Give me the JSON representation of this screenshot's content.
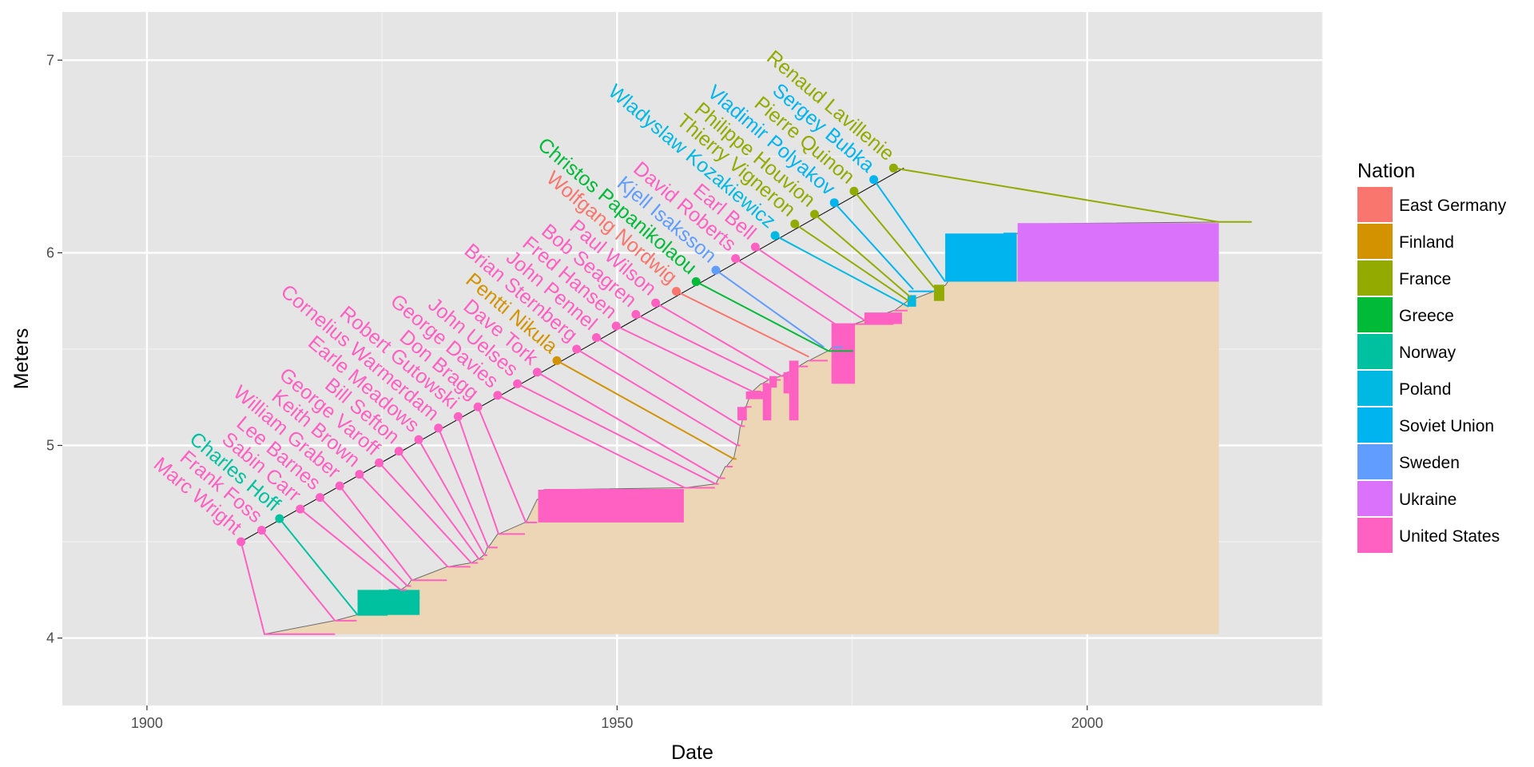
{
  "chart_data": {
    "type": "line",
    "xlabel": "Date",
    "ylabel": "Meters",
    "xlim": [
      1891,
      2025
    ],
    "ylim": [
      3.65,
      7.25
    ],
    "x_ticks": [
      1900,
      1950,
      2000
    ],
    "y_ticks": [
      4,
      5,
      6,
      7
    ],
    "grid": true,
    "legend": {
      "title": "Nation",
      "position": "right",
      "entries": [
        {
          "name": "East Germany",
          "color": "#F8766D"
        },
        {
          "name": "Finland",
          "color": "#D39200"
        },
        {
          "name": "France",
          "color": "#93AA00"
        },
        {
          "name": "Greece",
          "color": "#00BA38"
        },
        {
          "name": "Norway",
          "color": "#00C19F"
        },
        {
          "name": "Poland",
          "color": "#00B9E3"
        },
        {
          "name": "Soviet Union",
          "color": "#00B4F0"
        },
        {
          "name": "Sweden",
          "color": "#619CFF"
        },
        {
          "name": "Ukraine",
          "color": "#DB72FB"
        },
        {
          "name": "United States",
          "color": "#FF61C3"
        }
      ]
    },
    "record_progression": {
      "band_color": "#EDD6B5",
      "dates": [
        1912.4,
        1912.5,
        1919.9,
        1920.0,
        1922.3,
        1922.4,
        1925.6,
        1925.7,
        1926.9,
        1927.0,
        1927.6,
        1927.7,
        1928.1,
        1928.2,
        1931.9,
        1932.0,
        1934.4,
        1934.5,
        1935.2,
        1935.3,
        1935.8,
        1935.9,
        1936.2,
        1936.3,
        1937.3,
        1937.4,
        1940.2,
        1940.3,
        1941.5,
        1941.6,
        1942.2,
        1942.3,
        1957.1,
        1957.2,
        1960.4,
        1960.5,
        1960.8,
        1960.9,
        1961.5,
        1961.6,
        1962.3,
        1962.4,
        1962.7,
        1962.8,
        1963.1,
        1963.2,
        1963.6,
        1963.7,
        1964.3,
        1964.4,
        1965.3,
        1965.4,
        1966.1,
        1966.2,
        1967.4,
        1967.5,
        1968.1,
        1968.2,
        1969.2,
        1969.3,
        1970.3,
        1970.4,
        1972.4,
        1972.5,
        1975.1,
        1975.2,
        1979.4,
        1979.5,
        1980.9,
        1981.0,
        1983.7,
        1983.8,
        1984.8,
        1984.9,
        1985.6,
        1985.7,
        1987.0,
        1987.1,
        1988.2,
        1988.3,
        1991.0,
        1991.1,
        1992.5,
        1992.6,
        1993.2,
        1993.3,
        2014.0
      ],
      "heights": [
        4.02,
        4.02,
        4.09,
        4.09,
        4.12,
        4.12,
        4.21,
        4.21,
        4.25,
        4.25,
        4.27,
        4.27,
        4.3,
        4.3,
        4.37,
        4.37,
        4.39,
        4.39,
        4.41,
        4.41,
        4.43,
        4.43,
        4.47,
        4.47,
        4.54,
        4.54,
        4.6,
        4.6,
        4.72,
        4.72,
        4.77,
        4.77,
        4.78,
        4.78,
        4.8,
        4.8,
        4.83,
        4.83,
        4.89,
        4.89,
        4.93,
        4.93,
        5.0,
        5.0,
        5.1,
        5.1,
        5.2,
        5.2,
        5.28,
        5.28,
        5.32,
        5.32,
        5.34,
        5.34,
        5.36,
        5.36,
        5.38,
        5.38,
        5.41,
        5.41,
        5.44,
        5.44,
        5.49,
        5.49,
        5.63,
        5.63,
        5.7,
        5.7,
        5.75,
        5.75,
        5.8,
        5.8,
        5.83,
        5.83,
        5.88,
        5.88,
        5.94,
        5.94,
        6.0,
        6.0,
        6.05,
        6.05,
        6.1,
        6.1,
        6.15,
        6.15,
        6.16
      ]
    },
    "record_segments": [
      {
        "start": 1912.5,
        "end": 1920.0,
        "height": 4.02,
        "nation": "United States"
      },
      {
        "start": 1920.0,
        "end": 1922.3,
        "height": 4.09,
        "nation": "United States"
      },
      {
        "start": 1922.4,
        "end": 1925.6,
        "height": 4.12,
        "nation": "Norway"
      },
      {
        "start": 1924.5,
        "end": 1929.0,
        "height": 4.21,
        "nation": "Norway"
      },
      {
        "start": 1925.7,
        "end": 1926.9,
        "height": 4.25,
        "nation": "Norway"
      },
      {
        "start": 1927.0,
        "end": 1927.6,
        "height": 4.25,
        "nation": "United States"
      },
      {
        "start": 1927.7,
        "end": 1928.1,
        "height": 4.27,
        "nation": "United States"
      },
      {
        "start": 1928.2,
        "end": 1931.9,
        "height": 4.3,
        "nation": "United States"
      },
      {
        "start": 1932.0,
        "end": 1934.4,
        "height": 4.37,
        "nation": "United States"
      },
      {
        "start": 1934.5,
        "end": 1935.2,
        "height": 4.39,
        "nation": "United States"
      },
      {
        "start": 1935.3,
        "end": 1935.8,
        "height": 4.41,
        "nation": "United States"
      },
      {
        "start": 1935.9,
        "end": 1936.2,
        "height": 4.43,
        "nation": "United States"
      },
      {
        "start": 1936.3,
        "end": 1937.3,
        "height": 4.47,
        "nation": "United States"
      },
      {
        "start": 1937.4,
        "end": 1940.2,
        "height": 4.54,
        "nation": "United States"
      },
      {
        "start": 1940.3,
        "end": 1941.5,
        "height": 4.6,
        "nation": "United States"
      },
      {
        "start": 1941.6,
        "end": 1942.2,
        "height": 4.72,
        "nation": "United States"
      },
      {
        "start": 1942.3,
        "end": 1957.1,
        "height": 4.77,
        "nation": "United States"
      },
      {
        "start": 1957.2,
        "end": 1960.4,
        "height": 4.78,
        "nation": "United States"
      },
      {
        "start": 1960.5,
        "end": 1960.8,
        "height": 4.8,
        "nation": "United States"
      },
      {
        "start": 1960.9,
        "end": 1961.5,
        "height": 4.83,
        "nation": "United States"
      },
      {
        "start": 1961.6,
        "end": 1962.3,
        "height": 4.89,
        "nation": "United States"
      },
      {
        "start": 1962.4,
        "end": 1962.7,
        "height": 4.93,
        "nation": "Finland"
      },
      {
        "start": 1962.8,
        "end": 1963.1,
        "height": 5.0,
        "nation": "United States"
      },
      {
        "start": 1963.2,
        "end": 1963.6,
        "height": 5.1,
        "nation": "United States"
      },
      {
        "start": 1963.7,
        "end": 1964.3,
        "height": 5.2,
        "nation": "United States"
      },
      {
        "start": 1964.4,
        "end": 1965.3,
        "height": 5.28,
        "nation": "United States"
      },
      {
        "start": 1965.4,
        "end": 1966.1,
        "height": 5.32,
        "nation": "United States"
      },
      {
        "start": 1966.2,
        "end": 1967.4,
        "height": 5.34,
        "nation": "United States"
      },
      {
        "start": 1967.5,
        "end": 1968.1,
        "height": 5.36,
        "nation": "United States"
      },
      {
        "start": 1968.2,
        "end": 1969.2,
        "height": 5.38,
        "nation": "United States"
      },
      {
        "start": 1969.3,
        "end": 1970.3,
        "height": 5.41,
        "nation": "United States"
      },
      {
        "start": 1970.4,
        "end": 1972.4,
        "height": 5.44,
        "nation": "United States"
      },
      {
        "start": 1972.5,
        "end": 1975.1,
        "height": 5.49,
        "nation": "Greece"
      },
      {
        "start": 1973.0,
        "end": 1974.0,
        "height": 5.51,
        "nation": "Sweden"
      },
      {
        "start": 1972.8,
        "end": 1975.3,
        "height": 5.63,
        "nation": "United States"
      },
      {
        "start": 1975.2,
        "end": 1979.4,
        "height": 5.63,
        "nation": "United States"
      },
      {
        "start": 1979.5,
        "end": 1980.9,
        "height": 5.7,
        "nation": "United States"
      },
      {
        "start": 1980.9,
        "end": 1981.8,
        "height": 5.75,
        "nation": "Poland"
      },
      {
        "start": 1981.0,
        "end": 1983.7,
        "height": 5.8,
        "nation": "Soviet Union"
      },
      {
        "start": 1983.7,
        "end": 1984.8,
        "height": 5.83,
        "nation": "France"
      },
      {
        "start": 1984.9,
        "end": 1985.6,
        "height": 5.88,
        "nation": "Soviet Union"
      },
      {
        "start": 1985.7,
        "end": 1987.0,
        "height": 5.94,
        "nation": "Soviet Union"
      },
      {
        "start": 1987.1,
        "end": 1988.2,
        "height": 6.0,
        "nation": "Soviet Union"
      },
      {
        "start": 1988.3,
        "end": 1991.0,
        "height": 6.05,
        "nation": "Soviet Union"
      },
      {
        "start": 1991.1,
        "end": 1992.5,
        "height": 6.1,
        "nation": "Soviet Union"
      },
      {
        "start": 1992.6,
        "end": 2014.0,
        "height": 6.15,
        "nation": "Ukraine"
      },
      {
        "start": 2014.0,
        "end": 2017.5,
        "height": 6.16,
        "nation": "France"
      }
    ],
    "record_spans": [
      {
        "start": 1922.4,
        "end": 1929.0,
        "low": 4.12,
        "high": 4.25,
        "nation": "Norway"
      },
      {
        "start": 1941.6,
        "end": 1957.1,
        "low": 4.6,
        "high": 4.77,
        "nation": "United States"
      },
      {
        "start": 1962.8,
        "end": 1963.8,
        "low": 5.13,
        "high": 5.2,
        "nation": "United States"
      },
      {
        "start": 1963.7,
        "end": 1965.8,
        "low": 5.24,
        "high": 5.28,
        "nation": "United States"
      },
      {
        "start": 1965.5,
        "end": 1966.4,
        "low": 5.13,
        "high": 5.32,
        "nation": "United States"
      },
      {
        "start": 1966.2,
        "end": 1967.0,
        "low": 5.3,
        "high": 5.36,
        "nation": "United States"
      },
      {
        "start": 1967.7,
        "end": 1968.3,
        "low": 5.27,
        "high": 5.38,
        "nation": "United States"
      },
      {
        "start": 1968.3,
        "end": 1969.3,
        "low": 5.13,
        "high": 5.44,
        "nation": "United States"
      },
      {
        "start": 1972.8,
        "end": 1975.3,
        "low": 5.32,
        "high": 5.63,
        "nation": "United States"
      },
      {
        "start": 1976.3,
        "end": 1980.3,
        "low": 5.63,
        "high": 5.69,
        "nation": "United States"
      },
      {
        "start": 1980.9,
        "end": 1981.8,
        "low": 5.72,
        "high": 5.78,
        "nation": "Poland"
      },
      {
        "start": 1983.7,
        "end": 1984.8,
        "low": 5.75,
        "high": 5.83,
        "nation": "France"
      },
      {
        "start": 1984.9,
        "end": 1992.5,
        "low": 5.85,
        "high": 6.1,
        "nation": "Soviet Union"
      },
      {
        "start": 1992.6,
        "end": 2014.0,
        "low": 5.85,
        "high": 6.15,
        "nation": "Ukraine"
      }
    ],
    "label_line": {
      "x": [
        1910,
        1980.5
      ],
      "y": [
        4.5,
        6.44
      ]
    },
    "athletes": [
      {
        "name": "Marc Wright",
        "nation": "United States",
        "label_x": 1910.0,
        "label_y": 4.5,
        "record_date": 1912.5,
        "record_height": 4.02
      },
      {
        "name": "Frank Foss",
        "nation": "United States",
        "label_x": 1912.2,
        "label_y": 4.56,
        "record_date": 1920.0,
        "record_height": 4.09
      },
      {
        "name": "Charles Hoff",
        "nation": "Norway",
        "label_x": 1914.1,
        "label_y": 4.62,
        "record_date": 1922.4,
        "record_height": 4.12
      },
      {
        "name": "Sabin Carr",
        "nation": "United States",
        "label_x": 1916.3,
        "label_y": 4.67,
        "record_date": 1927.0,
        "record_height": 4.25
      },
      {
        "name": "Lee Barnes",
        "nation": "United States",
        "label_x": 1918.4,
        "label_y": 4.73,
        "record_date": 1927.7,
        "record_height": 4.27
      },
      {
        "name": "William Graber",
        "nation": "United States",
        "label_x": 1920.5,
        "label_y": 4.79,
        "record_date": 1928.2,
        "record_height": 4.3
      },
      {
        "name": "Keith Brown",
        "nation": "United States",
        "label_x": 1922.6,
        "label_y": 4.85,
        "record_date": 1932.0,
        "record_height": 4.37
      },
      {
        "name": "George Varoff",
        "nation": "United States",
        "label_x": 1924.7,
        "label_y": 4.91,
        "record_date": 1934.5,
        "record_height": 4.39
      },
      {
        "name": "Bill Sefton",
        "nation": "United States",
        "label_x": 1926.8,
        "label_y": 4.97,
        "record_date": 1935.3,
        "record_height": 4.41
      },
      {
        "name": "Earle Meadows",
        "nation": "United States",
        "label_x": 1928.9,
        "label_y": 5.03,
        "record_date": 1935.9,
        "record_height": 4.43
      },
      {
        "name": "Cornelius Warmerdam",
        "nation": "United States",
        "label_x": 1931.0,
        "label_y": 5.09,
        "record_date": 1936.3,
        "record_height": 4.47
      },
      {
        "name": "Robert Gutowski",
        "nation": "United States",
        "label_x": 1933.1,
        "label_y": 5.15,
        "record_date": 1937.4,
        "record_height": 4.54
      },
      {
        "name": "Don Bragg",
        "nation": "United States",
        "label_x": 1935.2,
        "label_y": 5.2,
        "record_date": 1940.3,
        "record_height": 4.6
      },
      {
        "name": "George Davies",
        "nation": "United States",
        "label_x": 1937.3,
        "label_y": 5.26,
        "record_date": 1957.2,
        "record_height": 4.78
      },
      {
        "name": "John Uelses",
        "nation": "United States",
        "label_x": 1939.4,
        "label_y": 5.32,
        "record_date": 1960.5,
        "record_height": 4.8
      },
      {
        "name": "Dave Tork",
        "nation": "United States",
        "label_x": 1941.5,
        "label_y": 5.38,
        "record_date": 1960.9,
        "record_height": 4.83
      },
      {
        "name": "Pentti Nikula",
        "nation": "Finland",
        "label_x": 1943.6,
        "label_y": 5.44,
        "record_date": 1962.4,
        "record_height": 4.93
      },
      {
        "name": "Brian Sternberg",
        "nation": "United States",
        "label_x": 1945.7,
        "label_y": 5.5,
        "record_date": 1962.8,
        "record_height": 5.0
      },
      {
        "name": "John Pennel",
        "nation": "United States",
        "label_x": 1947.8,
        "label_y": 5.56,
        "record_date": 1963.2,
        "record_height": 5.1
      },
      {
        "name": "Fred Hansen",
        "nation": "United States",
        "label_x": 1949.9,
        "label_y": 5.62,
        "record_date": 1964.4,
        "record_height": 5.28
      },
      {
        "name": "Bob Seagren",
        "nation": "United States",
        "label_x": 1952.0,
        "label_y": 5.68,
        "record_date": 1966.2,
        "record_height": 5.34
      },
      {
        "name": "Paul Wilson",
        "nation": "United States",
        "label_x": 1954.1,
        "label_y": 5.74,
        "record_date": 1967.5,
        "record_height": 5.36
      },
      {
        "name": "Wolfgang Nordwig",
        "nation": "East Germany",
        "label_x": 1956.3,
        "label_y": 5.8,
        "record_date": 1970.4,
        "record_height": 5.46
      },
      {
        "name": "Christos Papanikolaou",
        "nation": "Greece",
        "label_x": 1958.4,
        "label_y": 5.85,
        "record_date": 1972.5,
        "record_height": 5.49
      },
      {
        "name": "Kjell Isaksson",
        "nation": "Sweden",
        "label_x": 1960.5,
        "label_y": 5.91,
        "record_date": 1972.0,
        "record_height": 5.51
      },
      {
        "name": "David Roberts",
        "nation": "United States",
        "label_x": 1962.6,
        "label_y": 5.97,
        "record_date": 1973.2,
        "record_height": 5.63
      },
      {
        "name": "Earl Bell",
        "nation": "United States",
        "label_x": 1964.7,
        "label_y": 6.03,
        "record_date": 1976.3,
        "record_height": 5.65
      },
      {
        "name": "Wladyslaw Kozakiewicz",
        "nation": "Poland",
        "label_x": 1966.8,
        "label_y": 6.09,
        "record_date": 1981.0,
        "record_height": 5.72
      },
      {
        "name": "Thierry Vigneron",
        "nation": "France",
        "label_x": 1968.9,
        "label_y": 6.15,
        "record_date": 1981.0,
        "record_height": 5.75
      },
      {
        "name": "Philippe Houvion",
        "nation": "France",
        "label_x": 1971.0,
        "label_y": 6.2,
        "record_date": 1981.2,
        "record_height": 5.77
      },
      {
        "name": "Vladimir Polyakov",
        "nation": "Soviet Union",
        "label_x": 1973.1,
        "label_y": 6.26,
        "record_date": 1981.5,
        "record_height": 5.81
      },
      {
        "name": "Pierre Quinon",
        "nation": "France",
        "label_x": 1975.2,
        "label_y": 6.32,
        "record_date": 1983.7,
        "record_height": 5.82
      },
      {
        "name": "Sergey Bubka",
        "nation": "Soviet Union",
        "label_x": 1977.3,
        "label_y": 6.38,
        "record_date": 1984.9,
        "record_height": 5.85
      },
      {
        "name": "Renaud Lavillenie",
        "nation": "France",
        "label_x": 1979.4,
        "label_y": 6.44,
        "record_date": 2014.0,
        "record_height": 6.16
      }
    ]
  }
}
